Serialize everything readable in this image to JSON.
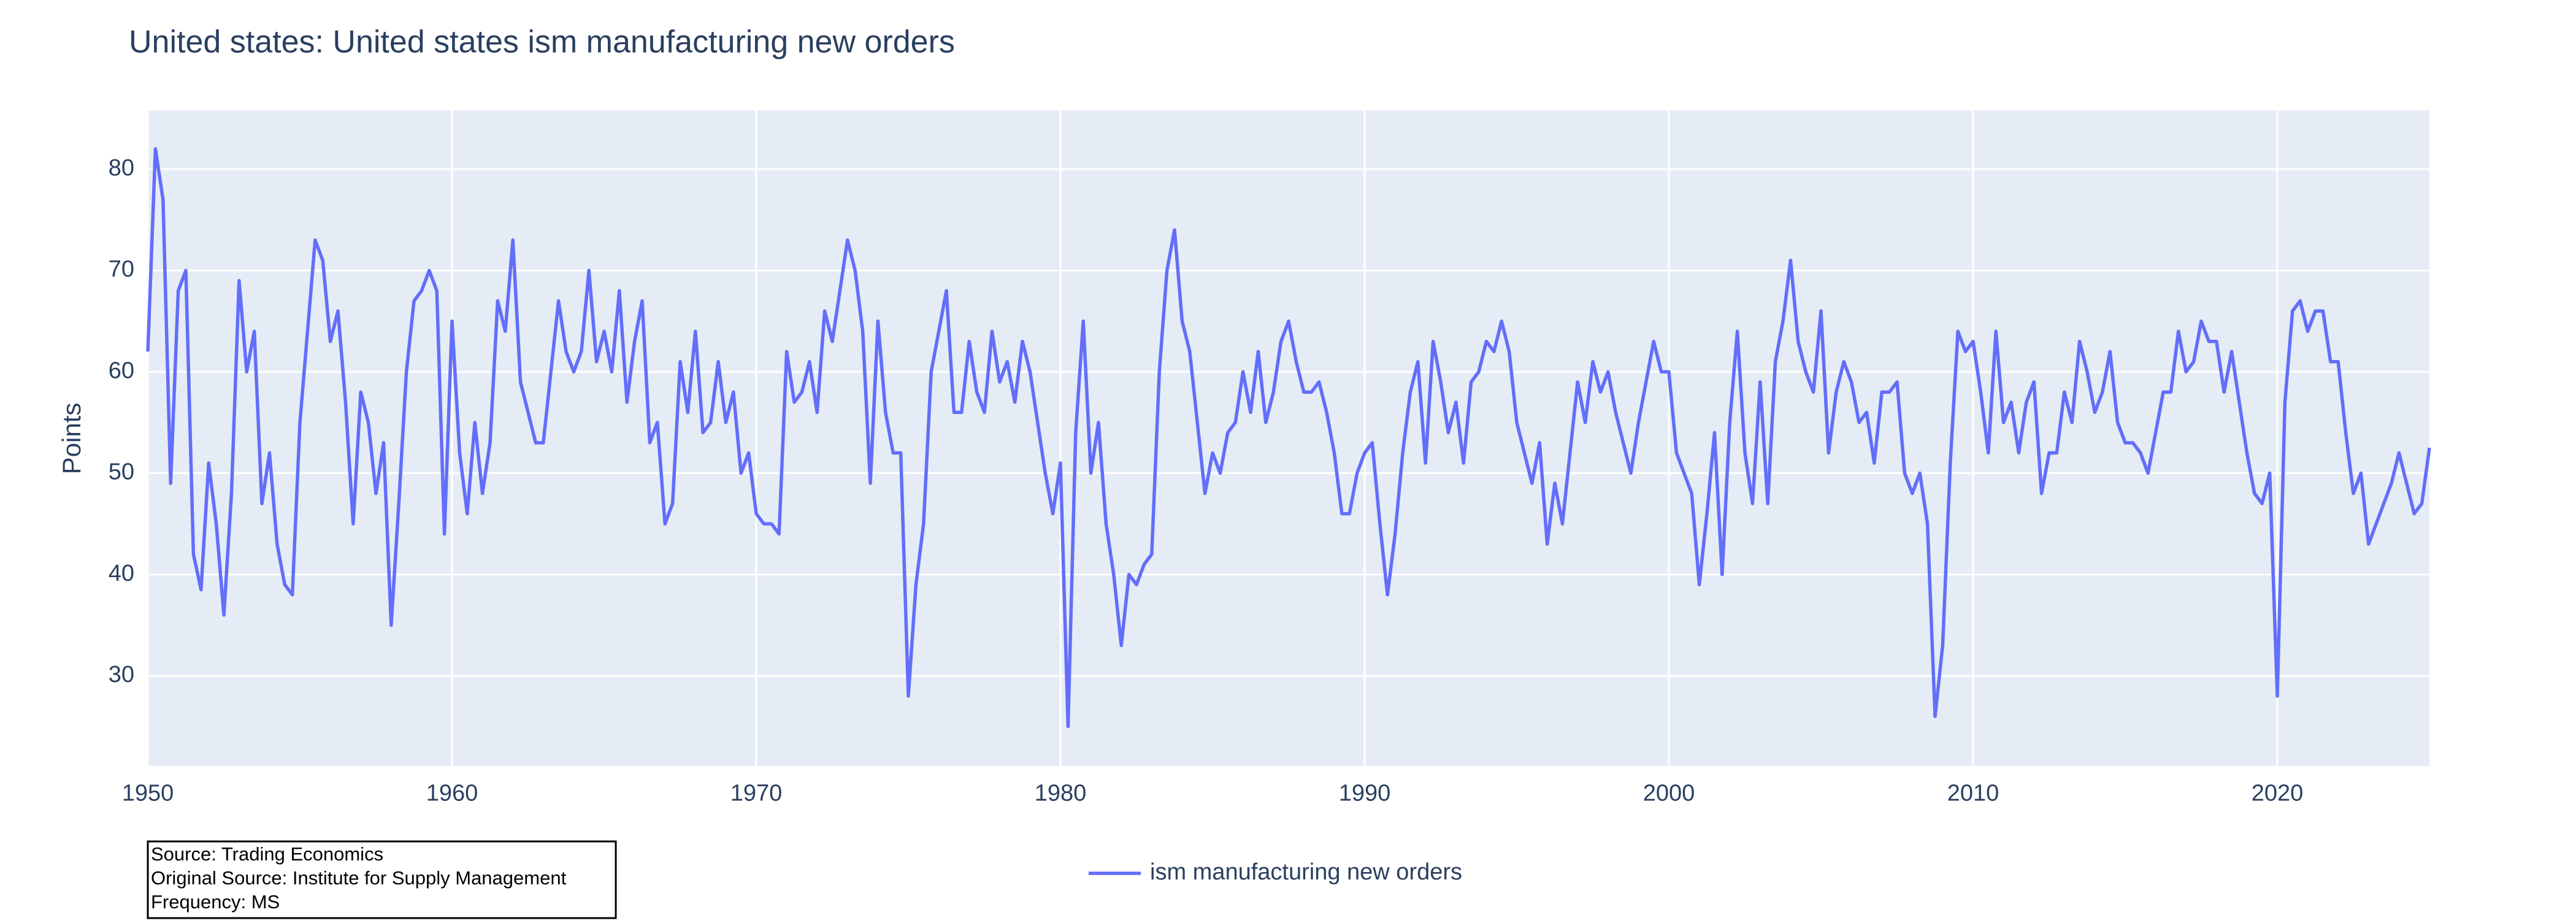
{
  "chart_data": {
    "type": "line",
    "title": "United states: United states ism manufacturing new orders",
    "y_label": "Points",
    "annotation": [
      "Source: Trading Economics",
      "Original Source: Institute for Supply Management",
      "Frequency: MS"
    ],
    "legend": "bottom",
    "grid": true,
    "xlim": [
      1950,
      2025
    ],
    "ylim": [
      21.1,
      85.8
    ],
    "xticks": [
      1950,
      1960,
      1970,
      1980,
      1990,
      2000,
      2010,
      2020
    ],
    "yticks": [
      30,
      40,
      50,
      60,
      70,
      80
    ],
    "x": [
      1950,
      1950.25,
      1950.5,
      1950.75,
      1951,
      1951.25,
      1951.5,
      1951.75,
      1952,
      1952.25,
      1952.5,
      1952.75,
      1953,
      1953.25,
      1953.5,
      1953.75,
      1954,
      1954.25,
      1954.5,
      1954.75,
      1955,
      1955.25,
      1955.5,
      1955.75,
      1956,
      1956.25,
      1956.5,
      1956.75,
      1957,
      1957.25,
      1957.5,
      1957.75,
      1958,
      1958.25,
      1958.5,
      1958.75,
      1959,
      1959.25,
      1959.5,
      1959.75,
      1960,
      1960.25,
      1960.5,
      1960.75,
      1961,
      1961.25,
      1961.5,
      1961.75,
      1962,
      1962.25,
      1962.5,
      1962.75,
      1963,
      1963.25,
      1963.5,
      1963.75,
      1964,
      1964.25,
      1964.5,
      1964.75,
      1965,
      1965.25,
      1965.5,
      1965.75,
      1966,
      1966.25,
      1966.5,
      1966.75,
      1967,
      1967.25,
      1967.5,
      1967.75,
      1968,
      1968.25,
      1968.5,
      1968.75,
      1969,
      1969.25,
      1969.5,
      1969.75,
      1970,
      1970.25,
      1970.5,
      1970.75,
      1971,
      1971.25,
      1971.5,
      1971.75,
      1972,
      1972.25,
      1972.5,
      1972.75,
      1973,
      1973.25,
      1973.5,
      1973.75,
      1974,
      1974.25,
      1974.5,
      1974.75,
      1975,
      1975.25,
      1975.5,
      1975.75,
      1976,
      1976.25,
      1976.5,
      1976.75,
      1977,
      1977.25,
      1977.5,
      1977.75,
      1978,
      1978.25,
      1978.5,
      1978.75,
      1979,
      1979.25,
      1979.5,
      1979.75,
      1980,
      1980.25,
      1980.5,
      1980.75,
      1981,
      1981.25,
      1981.5,
      1981.75,
      1982,
      1982.25,
      1982.5,
      1982.75,
      1983,
      1983.25,
      1983.5,
      1983.75,
      1984,
      1984.25,
      1984.5,
      1984.75,
      1985,
      1985.25,
      1985.5,
      1985.75,
      1986,
      1986.25,
      1986.5,
      1986.75,
      1987,
      1987.25,
      1987.5,
      1987.75,
      1988,
      1988.25,
      1988.5,
      1988.75,
      1989,
      1989.25,
      1989.5,
      1989.75,
      1990,
      1990.25,
      1990.5,
      1990.75,
      1991,
      1991.25,
      1991.5,
      1991.75,
      1992,
      1992.25,
      1992.5,
      1992.75,
      1993,
      1993.25,
      1993.5,
      1993.75,
      1994,
      1994.25,
      1994.5,
      1994.75,
      1995,
      1995.25,
      1995.5,
      1995.75,
      1996,
      1996.25,
      1996.5,
      1996.75,
      1997,
      1997.25,
      1997.5,
      1997.75,
      1998,
      1998.25,
      1998.5,
      1998.75,
      1999,
      1999.25,
      1999.5,
      1999.75,
      2000,
      2000.25,
      2000.5,
      2000.75,
      2001,
      2001.25,
      2001.5,
      2001.75,
      2002,
      2002.25,
      2002.5,
      2002.75,
      2003,
      2003.25,
      2003.5,
      2003.75,
      2004,
      2004.25,
      2004.5,
      2004.75,
      2005,
      2005.25,
      2005.5,
      2005.75,
      2006,
      2006.25,
      2006.5,
      2006.75,
      2007,
      2007.25,
      2007.5,
      2007.75,
      2008,
      2008.25,
      2008.5,
      2008.75,
      2009,
      2009.25,
      2009.5,
      2009.75,
      2010,
      2010.25,
      2010.5,
      2010.75,
      2011,
      2011.25,
      2011.5,
      2011.75,
      2012,
      2012.25,
      2012.5,
      2012.75,
      2013,
      2013.25,
      2013.5,
      2013.75,
      2014,
      2014.25,
      2014.5,
      2014.75,
      2015,
      2015.25,
      2015.5,
      2015.75,
      2016,
      2016.25,
      2016.5,
      2016.75,
      2017,
      2017.25,
      2017.5,
      2017.75,
      2018,
      2018.25,
      2018.5,
      2018.75,
      2019,
      2019.25,
      2019.5,
      2019.75,
      2020,
      2020.25,
      2020.5,
      2020.75,
      2021,
      2021.25,
      2021.5,
      2021.75,
      2022,
      2022.25,
      2022.5,
      2022.75,
      2023,
      2023.25,
      2023.5,
      2023.75,
      2024,
      2024.25,
      2024.5,
      2024.75,
      2025
    ],
    "series": [
      {
        "name": "ism manufacturing new orders",
        "color": "#636efa",
        "values": [
          62,
          82,
          77,
          49,
          68,
          70,
          42,
          38.5,
          51,
          45,
          36,
          48,
          69,
          60,
          64,
          47,
          52,
          43,
          39,
          38,
          55,
          64,
          73,
          71,
          63,
          66,
          57,
          45,
          58,
          55,
          48,
          53,
          35,
          47,
          60,
          67,
          68,
          70,
          68,
          44,
          65,
          52,
          46,
          55,
          48,
          53,
          67,
          64,
          73,
          59,
          56,
          53,
          53,
          60,
          67,
          62,
          60,
          62,
          70,
          61,
          64,
          60,
          68,
          57,
          63,
          67,
          53,
          55,
          45,
          47,
          61,
          56,
          64,
          54,
          55,
          61,
          55,
          58,
          50,
          52,
          46,
          45,
          45,
          44,
          62,
          57,
          58,
          61,
          56,
          66,
          63,
          68,
          73,
          70,
          64,
          49,
          65,
          56,
          52,
          52,
          28,
          39,
          45,
          60,
          64,
          68,
          56,
          56,
          63,
          58,
          56,
          64,
          59,
          61,
          57,
          63,
          60,
          55,
          50,
          46,
          51,
          25,
          54,
          65,
          50,
          55,
          45,
          40,
          33,
          40,
          39,
          41,
          42,
          60,
          70,
          74,
          65,
          62,
          55,
          48,
          52,
          50,
          54,
          55,
          60,
          56,
          62,
          55,
          58,
          63,
          65,
          61,
          58,
          58,
          59,
          56,
          52,
          46,
          46,
          50,
          52,
          53,
          45,
          38,
          44,
          52,
          58,
          61,
          51,
          63,
          59,
          54,
          57,
          51,
          59,
          60,
          63,
          62,
          65,
          62,
          55,
          52,
          49,
          53,
          43,
          49,
          45,
          52,
          59,
          55,
          61,
          58,
          60,
          56,
          53,
          50,
          55,
          59,
          63,
          60,
          60,
          52,
          50,
          48,
          39,
          46,
          54,
          40,
          55,
          64,
          52,
          47,
          59,
          47,
          61,
          65,
          71,
          63,
          60,
          58,
          66,
          52,
          58,
          61,
          59,
          55,
          56,
          51,
          58,
          58,
          59,
          50,
          48,
          50,
          45,
          26,
          33,
          51,
          64,
          62,
          63,
          58,
          52,
          64,
          55,
          57,
          52,
          57,
          59,
          48,
          52,
          52,
          58,
          55,
          63,
          60,
          56,
          58,
          62,
          55,
          53,
          53,
          52,
          50,
          54,
          58,
          58,
          64,
          60,
          61,
          65,
          63,
          63,
          58,
          62,
          57,
          52,
          48,
          47,
          50,
          28,
          57,
          66,
          67,
          64,
          66,
          66,
          61,
          61,
          54,
          48,
          50,
          43,
          45,
          47,
          49,
          52,
          49,
          46,
          47,
          52.5
        ]
      }
    ]
  }
}
